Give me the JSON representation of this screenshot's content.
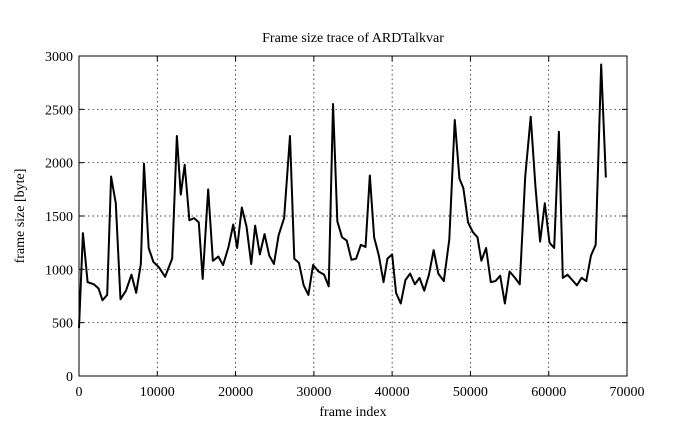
{
  "chart_data": {
    "type": "line",
    "title": "Frame size trace of ARDTalkvar",
    "x_label": "frame index",
    "y_label": "frame size [byte]",
    "xlim": [
      0,
      70000
    ],
    "ylim": [
      0,
      3000
    ],
    "xticks": [
      0,
      10000,
      20000,
      30000,
      40000,
      50000,
      60000,
      70000
    ],
    "yticks": [
      0,
      500,
      1000,
      1500,
      2000,
      2500,
      3000
    ],
    "grid": true,
    "series": [
      {
        "color": "#000000",
        "x": [
          0,
          500,
          1100,
          1900,
          2500,
          3000,
          3600,
          4100,
          4700,
          5300,
          6000,
          6700,
          7300,
          7900,
          8300,
          8900,
          9500,
          10200,
          11000,
          11900,
          12500,
          13000,
          13500,
          14100,
          14700,
          15300,
          15800,
          16500,
          17100,
          17800,
          18400,
          19100,
          19700,
          20200,
          20800,
          21400,
          22000,
          22500,
          23100,
          23700,
          24300,
          24900,
          25500,
          26200,
          26950,
          27500,
          28100,
          28700,
          29300,
          29900,
          30600,
          31300,
          31900,
          32450,
          33000,
          33600,
          34200,
          34800,
          35400,
          36000,
          36600,
          37150,
          37700,
          38300,
          38900,
          39400,
          40000,
          40500,
          41100,
          41700,
          42300,
          42900,
          43500,
          44100,
          44700,
          45300,
          45900,
          46600,
          47300,
          48000,
          48600,
          49100,
          49700,
          50300,
          50900,
          51400,
          52000,
          52600,
          53200,
          53800,
          54400,
          55000,
          55700,
          56300,
          57000,
          57700,
          58300,
          58900,
          59500,
          60100,
          60700,
          61300,
          61800,
          62400,
          63000,
          63600,
          64200,
          64800,
          65400,
          66000,
          66700,
          67300
        ],
        "values": [
          450,
          1340,
          880,
          860,
          820,
          710,
          760,
          1870,
          1620,
          720,
          800,
          950,
          780,
          1050,
          1990,
          1200,
          1070,
          1020,
          930,
          1100,
          2250,
          1700,
          1980,
          1460,
          1480,
          1440,
          910,
          1750,
          1080,
          1120,
          1040,
          1210,
          1420,
          1200,
          1580,
          1400,
          1050,
          1410,
          1140,
          1330,
          1130,
          1050,
          1320,
          1480,
          2250,
          1100,
          1060,
          850,
          760,
          1040,
          980,
          950,
          840,
          2550,
          1450,
          1300,
          1270,
          1090,
          1100,
          1230,
          1210,
          1880,
          1300,
          1130,
          880,
          1100,
          1140,
          780,
          680,
          900,
          960,
          860,
          920,
          800,
          950,
          1180,
          960,
          890,
          1280,
          2400,
          1850,
          1760,
          1440,
          1350,
          1300,
          1080,
          1200,
          880,
          890,
          940,
          680,
          980,
          920,
          860,
          1870,
          2430,
          1780,
          1260,
          1620,
          1250,
          1200,
          2290,
          920,
          950,
          900,
          850,
          920,
          890,
          1130,
          1230,
          2920,
          1860
        ]
      }
    ]
  }
}
